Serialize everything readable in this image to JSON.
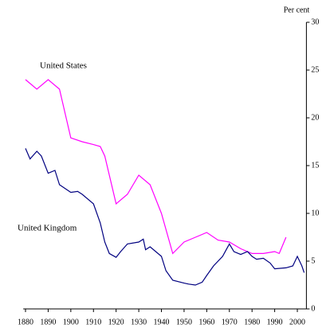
{
  "chart_data": {
    "type": "line",
    "y_label": "Per cent",
    "xlim": [
      1879,
      2004
    ],
    "xticks": [
      1880,
      1890,
      1900,
      1910,
      1920,
      1930,
      1940,
      1950,
      1960,
      1970,
      1980,
      1990,
      2000
    ],
    "ylim": [
      0,
      30
    ],
    "yticks": [
      0,
      5,
      10,
      15,
      20,
      25,
      30
    ],
    "series": [
      {
        "name": "United States",
        "color": "#ff00ff",
        "x": [
          1880,
          1885,
          1890,
          1895,
          1900,
          1905,
          1910,
          1913,
          1915,
          1920,
          1925,
          1930,
          1935,
          1940,
          1945,
          1950,
          1955,
          1960,
          1965,
          1970,
          1975,
          1980,
          1985,
          1990,
          1992,
          1995
        ],
        "values": [
          24,
          23,
          24,
          23,
          17.9,
          17.5,
          17.2,
          17,
          16,
          11,
          12,
          14,
          13,
          10,
          5.8,
          7,
          7.5,
          8,
          7.2,
          7,
          6.3,
          5.8,
          5.8,
          6,
          5.8,
          7.5
        ]
      },
      {
        "name": "United Kingdom",
        "color": "#000080",
        "x": [
          1880,
          1882,
          1885,
          1887,
          1890,
          1893,
          1895,
          1900,
          1903,
          1905,
          1910,
          1913,
          1915,
          1917,
          1920,
          1922,
          1925,
          1930,
          1932,
          1933,
          1935,
          1940,
          1942,
          1945,
          1950,
          1952,
          1955,
          1958,
          1960,
          1963,
          1967,
          1970,
          1972,
          1975,
          1978,
          1980,
          1982,
          1985,
          1988,
          1990,
          1995,
          1998,
          2000,
          2002,
          2003
        ],
        "values": [
          16.8,
          15.7,
          16.5,
          16,
          14.2,
          14.5,
          13,
          12.2,
          12.3,
          12,
          11,
          9,
          7,
          5.8,
          5.4,
          6,
          6.8,
          7,
          7.3,
          6.2,
          6.5,
          5.5,
          4,
          3,
          2.7,
          2.6,
          2.5,
          2.8,
          3.5,
          4.5,
          5.5,
          6.8,
          6,
          5.7,
          6,
          5.5,
          5.2,
          5.3,
          4.8,
          4.2,
          4.3,
          4.5,
          5.5,
          4.5,
          3.8
        ]
      }
    ]
  }
}
